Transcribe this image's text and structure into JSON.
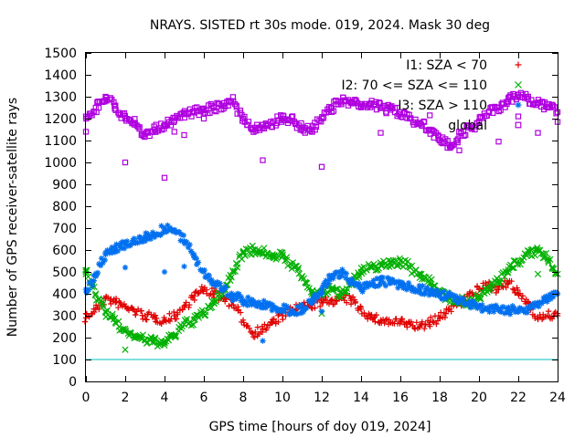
{
  "chart_data": {
    "type": "scatter",
    "title": "NRAYS. SISTED rt 30s mode. 019, 2024. Mask 30 deg",
    "xlabel": "GPS time [hours of doy 019, 2024]",
    "ylabel": "Number of GPS receiver-satellite rays",
    "xlim": [
      0,
      24
    ],
    "ylim": [
      0,
      1500
    ],
    "x_ticks": [
      0,
      2,
      4,
      6,
      8,
      10,
      12,
      14,
      16,
      18,
      20,
      22,
      24
    ],
    "y_ticks": [
      0,
      100,
      200,
      300,
      400,
      500,
      600,
      700,
      800,
      900,
      1000,
      1100,
      1200,
      1300,
      1400,
      1500
    ],
    "threshold_line": {
      "y": 100,
      "color": "#00c0c0"
    },
    "legend_position": "top-right",
    "series": [
      {
        "name": "I1: SZA < 70",
        "marker": "+",
        "color": "#e00000",
        "x": [
          0,
          0.5,
          1,
          1.5,
          2,
          2.5,
          3,
          3.5,
          4,
          4.5,
          5,
          5.5,
          6,
          6.5,
          7,
          7.5,
          8,
          8.5,
          9,
          9.5,
          10,
          10.5,
          11,
          11.5,
          12,
          12.5,
          13,
          13.5,
          14,
          14.5,
          15,
          15.5,
          16,
          16.5,
          17,
          17.5,
          18,
          18.5,
          19,
          19.5,
          20,
          20.5,
          21,
          21.5,
          22,
          22.5,
          23,
          23.5,
          24
        ],
        "values": [
          290,
          330,
          380,
          360,
          340,
          320,
          300,
          290,
          280,
          300,
          340,
          390,
          420,
          400,
          380,
          350,
          280,
          220,
          240,
          270,
          300,
          330,
          340,
          350,
          360,
          370,
          380,
          370,
          330,
          290,
          280,
          270,
          270,
          260,
          250,
          270,
          290,
          330,
          360,
          390,
          420,
          440,
          420,
          450,
          400,
          360,
          290,
          300,
          310
        ],
        "outliers": [
          [
            0,
            310
          ],
          [
            24,
            300
          ]
        ]
      },
      {
        "name": "I2: 70 <= SZA <= 110",
        "marker": "x",
        "color": "#00b000",
        "x": [
          0,
          0.5,
          1,
          1.5,
          2,
          2.5,
          3,
          3.5,
          4,
          4.5,
          5,
          5.5,
          6,
          6.5,
          7,
          7.5,
          8,
          8.5,
          9,
          9.5,
          10,
          10.5,
          11,
          11.5,
          12,
          12.5,
          13,
          13.5,
          14,
          14.5,
          15,
          15.5,
          16,
          16.5,
          17,
          17.5,
          18,
          18.5,
          19,
          19.5,
          20,
          20.5,
          21,
          21.5,
          22,
          22.5,
          23,
          23.5,
          24
        ],
        "values": [
          500,
          400,
          320,
          270,
          230,
          210,
          190,
          180,
          180,
          210,
          260,
          280,
          310,
          360,
          420,
          500,
          590,
          600,
          590,
          580,
          570,
          530,
          480,
          400,
          410,
          420,
          400,
          460,
          500,
          520,
          530,
          540,
          550,
          520,
          490,
          450,
          410,
          380,
          370,
          360,
          380,
          420,
          460,
          510,
          550,
          580,
          600,
          560,
          490
        ],
        "outliers": [
          [
            0,
            490
          ],
          [
            2,
            145
          ],
          [
            4,
            165
          ],
          [
            12,
            310
          ],
          [
            23,
            490
          ]
        ]
      },
      {
        "name": "I3: SZA > 110",
        "marker": "*",
        "color": "#0070f0",
        "x": [
          0,
          0.5,
          1,
          1.5,
          2,
          2.5,
          3,
          3.5,
          4,
          4.5,
          5,
          5.5,
          6,
          6.5,
          7,
          7.5,
          8,
          8.5,
          9,
          9.5,
          10,
          10.5,
          11,
          11.5,
          12,
          12.5,
          13,
          13.5,
          14,
          14.5,
          15,
          15.5,
          16,
          16.5,
          17,
          17.5,
          18,
          18.5,
          19,
          19.5,
          20,
          20.5,
          21,
          21.5,
          22,
          22.5,
          23,
          23.5,
          24
        ],
        "values": [
          420,
          480,
          580,
          610,
          630,
          640,
          660,
          670,
          700,
          690,
          640,
          580,
          500,
          450,
          420,
          390,
          370,
          360,
          350,
          340,
          330,
          320,
          330,
          360,
          420,
          480,
          500,
          450,
          420,
          440,
          460,
          450,
          440,
          430,
          420,
          410,
          400,
          390,
          370,
          350,
          340,
          330,
          330,
          330,
          320,
          330,
          360,
          380,
          400
        ],
        "outliers": [
          [
            2,
            520
          ],
          [
            4,
            500
          ],
          [
            5,
            525
          ],
          [
            9,
            185
          ],
          [
            12,
            320
          ]
        ]
      },
      {
        "name": "global",
        "marker": "square",
        "color": "#b000e0",
        "x": [
          0,
          0.5,
          1,
          1.5,
          2,
          2.5,
          3,
          3.5,
          4,
          4.5,
          5,
          5.5,
          6,
          6.5,
          7,
          7.5,
          8,
          8.5,
          9,
          9.5,
          10,
          10.5,
          11,
          11.5,
          12,
          12.5,
          13,
          13.5,
          14,
          14.5,
          15,
          15.5,
          16,
          16.5,
          17,
          17.5,
          18,
          18.5,
          19,
          19.5,
          20,
          20.5,
          21,
          21.5,
          22,
          22.5,
          23,
          23.5,
          24
        ],
        "values": [
          1210,
          1250,
          1300,
          1260,
          1200,
          1180,
          1130,
          1150,
          1170,
          1190,
          1220,
          1230,
          1240,
          1250,
          1260,
          1280,
          1200,
          1150,
          1160,
          1180,
          1200,
          1190,
          1160,
          1140,
          1200,
          1250,
          1280,
          1270,
          1260,
          1270,
          1250,
          1240,
          1230,
          1200,
          1180,
          1150,
          1100,
          1080,
          1120,
          1160,
          1180,
          1230,
          1250,
          1280,
          1310,
          1290,
          1270,
          1250,
          1230
        ],
        "outliers": [
          [
            0,
            1140
          ],
          [
            2,
            1000
          ],
          [
            4,
            930
          ],
          [
            4.5,
            1140
          ],
          [
            5,
            1125
          ],
          [
            6,
            1200
          ],
          [
            9,
            1010
          ],
          [
            12,
            980
          ],
          [
            15,
            1135
          ],
          [
            17.5,
            1215
          ],
          [
            19,
            1055
          ],
          [
            21,
            1095
          ],
          [
            22,
            1210
          ],
          [
            23,
            1135
          ],
          [
            24,
            1185
          ]
        ]
      }
    ]
  }
}
